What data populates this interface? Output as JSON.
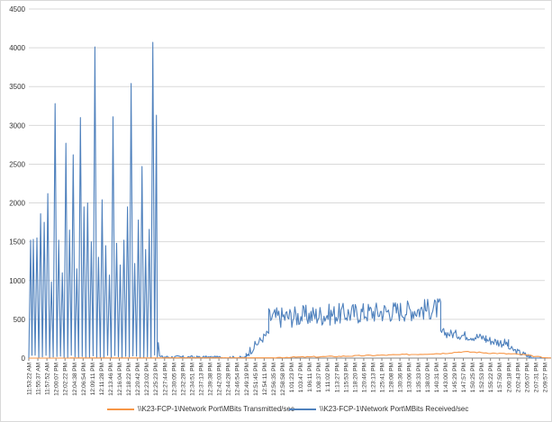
{
  "chart_data": {
    "type": "line",
    "title": "",
    "xlabel": "",
    "ylabel": "",
    "ylim": [
      0,
      4500
    ],
    "yticks": [
      0,
      500,
      1000,
      1500,
      2000,
      2500,
      3000,
      3500,
      4000,
      4500
    ],
    "grid": "horizontal",
    "legend_position": "bottom",
    "x_tick_labels": [
      "11:53:22 AM",
      "11:55:37 AM",
      "11:57:52 AM",
      "12:00:07 PM",
      "12:02:22 PM",
      "12:04:38 PM",
      "12:06:54 PM",
      "12:09:11 PM",
      "12:11:28 PM",
      "12:13:46 PM",
      "12:16:04 PM",
      "12:18:22 PM",
      "12:20:42 PM",
      "12:23:02 PM",
      "12:25:23 PM",
      "12:27:44 PM",
      "12:30:05 PM",
      "12:32:28 PM",
      "12:34:51 PM",
      "12:37:13 PM",
      "12:39:38 PM",
      "12:42:03 PM",
      "12:44:28 PM",
      "12:46:54 PM",
      "12:49:19 PM",
      "12:51:45 PM",
      "12:54:11 PM",
      "12:56:35 PM",
      "12:58:58 PM",
      "1:01:23 PM",
      "1:03:47 PM",
      "1:06:11 PM",
      "1:08:37 PM",
      "1:11:02 PM",
      "1:13:27 PM",
      "1:15:53 PM",
      "1:18:20 PM",
      "1:20:46 PM",
      "1:23:13 PM",
      "1:25:41 PM",
      "1:28:08 PM",
      "1:30:36 PM",
      "1:33:06 PM",
      "1:35:33 PM",
      "1:38:02 PM",
      "1:40:31 PM",
      "1:43:00 PM",
      "1:45:29 PM",
      "1:47:57 PM",
      "1:50:25 PM",
      "1:52:53 PM",
      "1:55:22 PM",
      "1:57:50 PM",
      "2:00:18 PM",
      "2:02:43 PM",
      "2:05:07 PM",
      "2:07:31 PM",
      "2:09:57 PM"
    ],
    "series": [
      {
        "name": "\\\\K23-FCP-1\\Network Port\\MBits Transmitted/sec",
        "color": "#f79646",
        "points": [
          [
            0,
            0
          ],
          [
            4.5,
            0
          ],
          [
            4.6,
            2
          ],
          [
            27,
            4
          ],
          [
            27.5,
            8
          ],
          [
            28,
            10
          ],
          [
            31,
            15
          ],
          [
            34,
            22
          ],
          [
            37,
            32
          ],
          [
            40,
            40
          ],
          [
            43,
            50
          ],
          [
            46,
            62
          ],
          [
            47,
            75
          ],
          [
            48,
            82
          ],
          [
            49,
            78
          ],
          [
            50,
            72
          ],
          [
            51,
            65
          ],
          [
            52,
            60
          ],
          [
            53,
            55
          ],
          [
            54,
            50
          ],
          [
            55,
            40
          ],
          [
            56,
            20
          ],
          [
            57,
            5
          ],
          [
            58,
            0
          ],
          [
            59,
            0
          ]
        ]
      },
      {
        "name": "\\\\K23-FCP-1\\Network Port\\MBits Received/sec",
        "color": "#4f81bd",
        "peaks": [
          [
            0.2,
            1520
          ],
          [
            0.5,
            1530
          ],
          [
            0.9,
            1550
          ],
          [
            1.3,
            1860
          ],
          [
            1.7,
            1750
          ],
          [
            2.1,
            2120
          ],
          [
            2.5,
            980
          ],
          [
            2.9,
            3280
          ],
          [
            3.3,
            1520
          ],
          [
            3.7,
            1100
          ],
          [
            4.1,
            2770
          ],
          [
            4.5,
            1650
          ],
          [
            4.9,
            2620
          ],
          [
            5.3,
            1150
          ],
          [
            5.7,
            3100
          ],
          [
            6.1,
            1950
          ],
          [
            6.5,
            2000
          ],
          [
            6.9,
            1500
          ],
          [
            7.3,
            4010
          ],
          [
            7.7,
            1300
          ],
          [
            8.1,
            2040
          ],
          [
            8.5,
            1450
          ],
          [
            8.9,
            1070
          ],
          [
            9.3,
            3110
          ],
          [
            9.7,
            1480
          ],
          [
            10.1,
            1200
          ],
          [
            10.5,
            1520
          ],
          [
            10.9,
            1950
          ],
          [
            11.3,
            3540
          ],
          [
            11.7,
            1220
          ],
          [
            12.1,
            1780
          ],
          [
            12.5,
            2470
          ],
          [
            12.9,
            1400
          ],
          [
            13.3,
            1660
          ],
          [
            13.7,
            4070
          ],
          [
            14.1,
            3130
          ],
          [
            14.3,
            200
          ]
        ],
        "segments": [
          {
            "x_from": 14.6,
            "x_to": 24,
            "level": [
              15,
              5
            ],
            "noise": 20
          },
          {
            "x_from": 24,
            "x_to": 26.5,
            "level": [
              50,
              330
            ],
            "noise": 60
          },
          {
            "x_from": 26.5,
            "x_to": 45.5,
            "level": [
              520,
              640
            ],
            "noise": 140
          },
          {
            "x_from": 45.5,
            "x_to": 50.5,
            "level": [
              330,
              260
            ],
            "noise": 60
          },
          {
            "x_from": 50.5,
            "x_to": 53,
            "level": [
              240,
              180
            ],
            "noise": 60
          },
          {
            "x_from": 53,
            "x_to": 55.5,
            "level": [
              130,
              10
            ],
            "noise": 40
          },
          {
            "x_from": 55.5,
            "x_to": 59,
            "level": [
              2,
              0
            ],
            "noise": 2
          }
        ]
      }
    ]
  }
}
